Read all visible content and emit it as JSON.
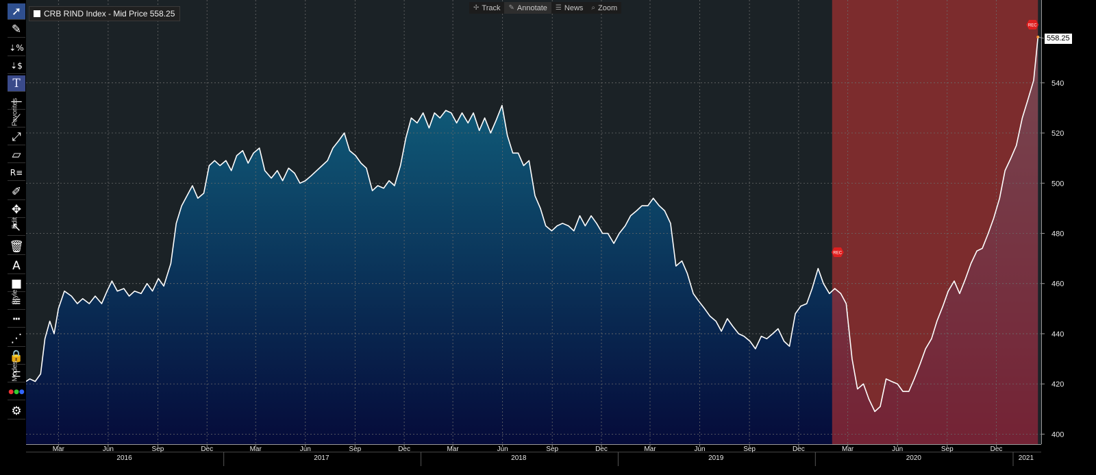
{
  "legend": {
    "text": "CRB RIND Index - Mid Price 558.25"
  },
  "top_menu": [
    {
      "label": "Track",
      "icon": "crosshair-icon",
      "glyph": "✢"
    },
    {
      "label": "Annotate",
      "icon": "pencil-icon",
      "glyph": "✎"
    },
    {
      "label": "News",
      "icon": "news-icon",
      "glyph": "☰"
    },
    {
      "label": "Zoom",
      "icon": "magnifier-icon",
      "glyph": "⌕"
    }
  ],
  "toolbar": {
    "groups": [
      "Favorites",
      "Edit",
      "Style",
      "Modes"
    ],
    "buttons": [
      {
        "name": "select-arrow-icon",
        "glyph": "➚"
      },
      {
        "name": "pencil-tool-icon",
        "glyph": "✎"
      },
      {
        "name": "percent-change-icon",
        "glyph": "⇣%"
      },
      {
        "name": "dollar-change-icon",
        "glyph": "⇣$"
      },
      {
        "name": "text-tool-icon",
        "glyph": "T"
      },
      {
        "name": "horizontal-line-icon",
        "glyph": "—"
      },
      {
        "name": "trend-line-icon",
        "glyph": "⟋"
      },
      {
        "name": "ray-line-icon",
        "glyph": "⤢"
      },
      {
        "name": "channel-icon",
        "glyph": "▱"
      },
      {
        "name": "retracement-icon",
        "glyph": "R≡"
      },
      {
        "name": "edit-pen-icon",
        "glyph": "✐"
      },
      {
        "name": "move-icon",
        "glyph": "✥"
      },
      {
        "name": "add-point-icon",
        "glyph": "↖"
      },
      {
        "name": "trash-icon",
        "glyph": "🗑"
      },
      {
        "name": "font-style-icon",
        "glyph": "A"
      },
      {
        "name": "fill-color-icon",
        "glyph": "■"
      },
      {
        "name": "line-weight-icon",
        "glyph": "≡"
      },
      {
        "name": "line-style-icon",
        "glyph": "┅"
      },
      {
        "name": "dotted-line-icon",
        "glyph": "⋰"
      },
      {
        "name": "lock-icon",
        "glyph": "🔒"
      },
      {
        "name": "magnet-icon",
        "glyph": "⊂"
      },
      {
        "name": "color-palette-icon",
        "glyph": "●"
      },
      {
        "name": "settings-gear-icon",
        "glyph": "⚙"
      }
    ]
  },
  "colors": {
    "background": "#1b2226",
    "area_top": "#126a84",
    "area_bottom": "#050b3a",
    "line": "#ffffff",
    "recession_shade": "#b83232",
    "grid": "#6b6b6b",
    "rec_badge": "#e01f1f"
  },
  "chart_data": {
    "type": "area",
    "title": "CRB RIND Index - Mid Price 558.25",
    "last_value_label": "558.25",
    "y_ticks": [
      400,
      420,
      440,
      460,
      480,
      500,
      520,
      540
    ],
    "ylim": [
      396,
      573
    ],
    "x_start": "2016-01-01",
    "x_end": "2021-02-22",
    "month_ticks": [
      {
        "label": "Mar",
        "date": "2016-03-01"
      },
      {
        "label": "Jun",
        "date": "2016-06-01"
      },
      {
        "label": "Sep",
        "date": "2016-09-01"
      },
      {
        "label": "Dec",
        "date": "2016-12-01"
      },
      {
        "label": "Mar",
        "date": "2017-03-01"
      },
      {
        "label": "Jun",
        "date": "2017-06-01"
      },
      {
        "label": "Sep",
        "date": "2017-09-01"
      },
      {
        "label": "Dec",
        "date": "2017-12-01"
      },
      {
        "label": "Mar",
        "date": "2018-03-01"
      },
      {
        "label": "Jun",
        "date": "2018-06-01"
      },
      {
        "label": "Sep",
        "date": "2018-09-01"
      },
      {
        "label": "Dec",
        "date": "2018-12-01"
      },
      {
        "label": "Mar",
        "date": "2019-03-01"
      },
      {
        "label": "Jun",
        "date": "2019-06-01"
      },
      {
        "label": "Sep",
        "date": "2019-09-01"
      },
      {
        "label": "Dec",
        "date": "2019-12-01"
      },
      {
        "label": "Mar",
        "date": "2020-03-01"
      },
      {
        "label": "Jun",
        "date": "2020-06-01"
      },
      {
        "label": "Sep",
        "date": "2020-09-01"
      },
      {
        "label": "Dec",
        "date": "2020-12-01"
      }
    ],
    "year_labels": [
      {
        "label": "2016",
        "center": "2016-07-01"
      },
      {
        "label": "2017",
        "center": "2017-07-01"
      },
      {
        "label": "2018",
        "center": "2018-07-01"
      },
      {
        "label": "2019",
        "center": "2019-07-01"
      },
      {
        "label": "2020",
        "center": "2020-07-01"
      },
      {
        "label": "2021",
        "center": "2021-01-25"
      }
    ],
    "year_boundaries": [
      "2017-01-01",
      "2018-01-01",
      "2019-01-01",
      "2020-01-01",
      "2021-01-01"
    ],
    "recession": {
      "start": "2020-02-01",
      "end": "2021-02-16",
      "badge": "REC"
    },
    "series": [
      {
        "points": [
          [
            "2016-01-01",
            421
          ],
          [
            "2016-01-08",
            422
          ],
          [
            "2016-01-18",
            421
          ],
          [
            "2016-01-28",
            424
          ],
          [
            "2016-02-05",
            438
          ],
          [
            "2016-02-14",
            445
          ],
          [
            "2016-02-22",
            440
          ],
          [
            "2016-03-01",
            450
          ],
          [
            "2016-03-12",
            457
          ],
          [
            "2016-03-25",
            455
          ],
          [
            "2016-04-05",
            452
          ],
          [
            "2016-04-15",
            454
          ],
          [
            "2016-04-27",
            452
          ],
          [
            "2016-05-08",
            455
          ],
          [
            "2016-05-20",
            452
          ],
          [
            "2016-05-30",
            457
          ],
          [
            "2016-06-08",
            461
          ],
          [
            "2016-06-18",
            457
          ],
          [
            "2016-06-30",
            458
          ],
          [
            "2016-07-10",
            455
          ],
          [
            "2016-07-20",
            457
          ],
          [
            "2016-08-01",
            456
          ],
          [
            "2016-08-12",
            460
          ],
          [
            "2016-08-22",
            457
          ],
          [
            "2016-09-02",
            462
          ],
          [
            "2016-09-12",
            459
          ],
          [
            "2016-09-25",
            468
          ],
          [
            "2016-10-05",
            484
          ],
          [
            "2016-10-15",
            491
          ],
          [
            "2016-10-25",
            495
          ],
          [
            "2016-11-04",
            499
          ],
          [
            "2016-11-14",
            494
          ],
          [
            "2016-11-25",
            496
          ],
          [
            "2016-12-05",
            507
          ],
          [
            "2016-12-15",
            509
          ],
          [
            "2016-12-25",
            507
          ],
          [
            "2017-01-05",
            509
          ],
          [
            "2017-01-15",
            505
          ],
          [
            "2017-01-25",
            511
          ],
          [
            "2017-02-05",
            513
          ],
          [
            "2017-02-15",
            508
          ],
          [
            "2017-02-25",
            512
          ],
          [
            "2017-03-08",
            514
          ],
          [
            "2017-03-18",
            505
          ],
          [
            "2017-03-30",
            502
          ],
          [
            "2017-04-10",
            505
          ],
          [
            "2017-04-20",
            501
          ],
          [
            "2017-05-01",
            506
          ],
          [
            "2017-05-12",
            504
          ],
          [
            "2017-05-22",
            500
          ],
          [
            "2017-06-01",
            501
          ],
          [
            "2017-06-12",
            503
          ],
          [
            "2017-06-22",
            505
          ],
          [
            "2017-07-02",
            507
          ],
          [
            "2017-07-12",
            509
          ],
          [
            "2017-07-22",
            514
          ],
          [
            "2017-08-02",
            517
          ],
          [
            "2017-08-12",
            520
          ],
          [
            "2017-08-22",
            513
          ],
          [
            "2017-09-02",
            511
          ],
          [
            "2017-09-12",
            508
          ],
          [
            "2017-09-22",
            506
          ],
          [
            "2017-10-03",
            497
          ],
          [
            "2017-10-13",
            499
          ],
          [
            "2017-10-24",
            498
          ],
          [
            "2017-11-03",
            501
          ],
          [
            "2017-11-13",
            499
          ],
          [
            "2017-11-24",
            507
          ],
          [
            "2017-12-04",
            518
          ],
          [
            "2017-12-14",
            526
          ],
          [
            "2017-12-25",
            524
          ],
          [
            "2018-01-05",
            528
          ],
          [
            "2018-01-16",
            522
          ],
          [
            "2018-01-26",
            528
          ],
          [
            "2018-02-05",
            526
          ],
          [
            "2018-02-16",
            529
          ],
          [
            "2018-02-26",
            528
          ],
          [
            "2018-03-08",
            524
          ],
          [
            "2018-03-18",
            528
          ],
          [
            "2018-03-29",
            524
          ],
          [
            "2018-04-08",
            528
          ],
          [
            "2018-04-19",
            521
          ],
          [
            "2018-04-29",
            526
          ],
          [
            "2018-05-10",
            520
          ],
          [
            "2018-05-20",
            525
          ],
          [
            "2018-05-31",
            531
          ],
          [
            "2018-06-10",
            519
          ],
          [
            "2018-06-20",
            512
          ],
          [
            "2018-06-30",
            512
          ],
          [
            "2018-07-10",
            507
          ],
          [
            "2018-07-20",
            509
          ],
          [
            "2018-07-31",
            495
          ],
          [
            "2018-08-10",
            490
          ],
          [
            "2018-08-20",
            483
          ],
          [
            "2018-08-31",
            481
          ],
          [
            "2018-09-10",
            483
          ],
          [
            "2018-09-20",
            484
          ],
          [
            "2018-10-01",
            483
          ],
          [
            "2018-10-11",
            481
          ],
          [
            "2018-10-22",
            487
          ],
          [
            "2018-11-01",
            483
          ],
          [
            "2018-11-12",
            487
          ],
          [
            "2018-11-22",
            484
          ],
          [
            "2018-12-03",
            480
          ],
          [
            "2018-12-13",
            480
          ],
          [
            "2018-12-24",
            476
          ],
          [
            "2019-01-03",
            480
          ],
          [
            "2019-01-14",
            483
          ],
          [
            "2019-01-24",
            487
          ],
          [
            "2019-02-04",
            489
          ],
          [
            "2019-02-14",
            491
          ],
          [
            "2019-02-25",
            491
          ],
          [
            "2019-03-07",
            494
          ],
          [
            "2019-03-18",
            491
          ],
          [
            "2019-03-28",
            489
          ],
          [
            "2019-04-08",
            484
          ],
          [
            "2019-04-18",
            467
          ],
          [
            "2019-04-29",
            469
          ],
          [
            "2019-05-09",
            464
          ],
          [
            "2019-05-20",
            456
          ],
          [
            "2019-05-30",
            453
          ],
          [
            "2019-06-10",
            450
          ],
          [
            "2019-06-20",
            447
          ],
          [
            "2019-07-01",
            445
          ],
          [
            "2019-07-11",
            441
          ],
          [
            "2019-07-22",
            446
          ],
          [
            "2019-08-01",
            443
          ],
          [
            "2019-08-12",
            440
          ],
          [
            "2019-08-22",
            439
          ],
          [
            "2019-09-02",
            437
          ],
          [
            "2019-09-12",
            434
          ],
          [
            "2019-09-23",
            439
          ],
          [
            "2019-10-03",
            438
          ],
          [
            "2019-10-14",
            440
          ],
          [
            "2019-10-24",
            442
          ],
          [
            "2019-11-04",
            437
          ],
          [
            "2019-11-14",
            435
          ],
          [
            "2019-11-25",
            448
          ],
          [
            "2019-12-05",
            451
          ],
          [
            "2019-12-16",
            452
          ],
          [
            "2019-12-26",
            458
          ],
          [
            "2020-01-06",
            466
          ],
          [
            "2020-01-16",
            460
          ],
          [
            "2020-01-27",
            456
          ],
          [
            "2020-02-06",
            458
          ],
          [
            "2020-02-17",
            456
          ],
          [
            "2020-02-27",
            452
          ],
          [
            "2020-03-09",
            430
          ],
          [
            "2020-03-19",
            418
          ],
          [
            "2020-03-30",
            420
          ],
          [
            "2020-04-09",
            414
          ],
          [
            "2020-04-20",
            409
          ],
          [
            "2020-04-30",
            411
          ],
          [
            "2020-05-11",
            422
          ],
          [
            "2020-05-21",
            421
          ],
          [
            "2020-06-01",
            420
          ],
          [
            "2020-06-11",
            417
          ],
          [
            "2020-06-22",
            417
          ],
          [
            "2020-07-02",
            422
          ],
          [
            "2020-07-13",
            428
          ],
          [
            "2020-07-23",
            434
          ],
          [
            "2020-08-03",
            438
          ],
          [
            "2020-08-13",
            445
          ],
          [
            "2020-08-24",
            451
          ],
          [
            "2020-09-03",
            457
          ],
          [
            "2020-09-14",
            461
          ],
          [
            "2020-09-24",
            456
          ],
          [
            "2020-10-05",
            462
          ],
          [
            "2020-10-15",
            468
          ],
          [
            "2020-10-26",
            473
          ],
          [
            "2020-11-05",
            474
          ],
          [
            "2020-11-16",
            480
          ],
          [
            "2020-11-26",
            486
          ],
          [
            "2020-12-07",
            494
          ],
          [
            "2020-12-17",
            505
          ],
          [
            "2020-12-28",
            510
          ],
          [
            "2021-01-07",
            515
          ],
          [
            "2021-01-18",
            526
          ],
          [
            "2021-01-28",
            533
          ],
          [
            "2021-02-08",
            541
          ],
          [
            "2021-02-16",
            558.25
          ]
        ]
      }
    ]
  }
}
